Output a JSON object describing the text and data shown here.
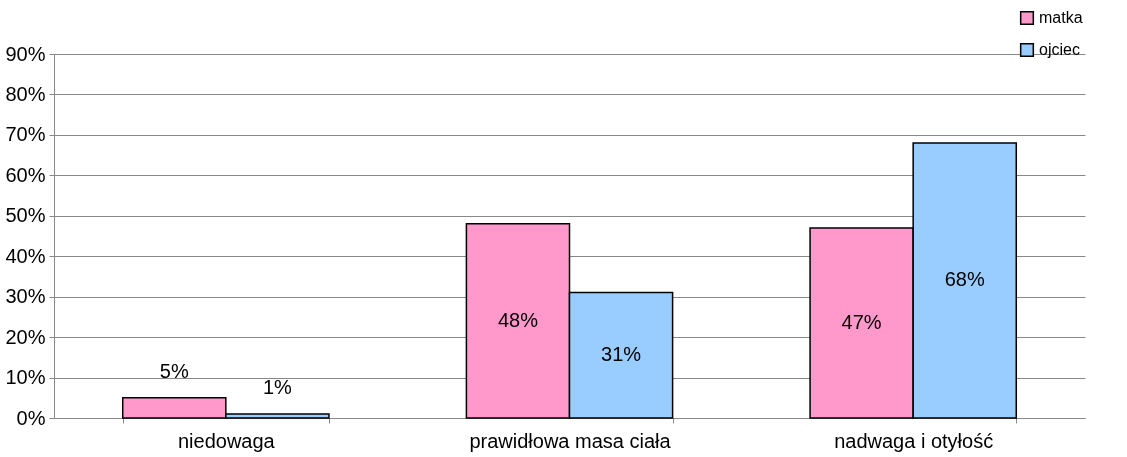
{
  "chart_data": {
    "type": "bar",
    "categories": [
      "niedowaga",
      "prawidłowa masa ciała",
      "nadwaga i otyłość"
    ],
    "series": [
      {
        "name": "matka",
        "color": "#ff99cc",
        "values": [
          5,
          48,
          47
        ],
        "value_labels": [
          "5%",
          "48%",
          "47%"
        ]
      },
      {
        "name": "ojciec",
        "color": "#99ccff",
        "values": [
          1,
          31,
          68
        ],
        "value_labels": [
          "1%",
          "31%",
          "68%"
        ]
      }
    ],
    "ylim": [
      0,
      90
    ],
    "yticks": [
      {
        "value": 0,
        "label": "0%"
      },
      {
        "value": 10,
        "label": "10%"
      },
      {
        "value": 20,
        "label": "20%"
      },
      {
        "value": 30,
        "label": "30%"
      },
      {
        "value": 40,
        "label": "40%"
      },
      {
        "value": 50,
        "label": "50%"
      },
      {
        "value": 60,
        "label": "60%"
      },
      {
        "value": 70,
        "label": "70%"
      },
      {
        "value": 80,
        "label": "80%"
      },
      {
        "value": 90,
        "label": "90%"
      }
    ],
    "grid": "y",
    "legend": "top right"
  }
}
